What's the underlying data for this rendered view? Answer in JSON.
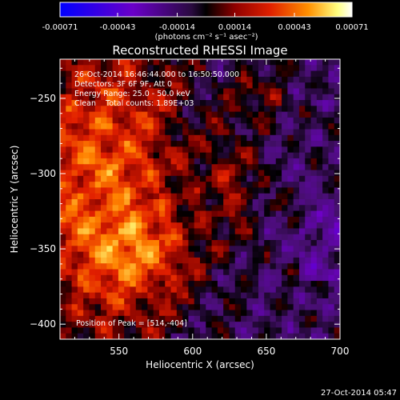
{
  "chart_data": {
    "type": "heatmap",
    "title": "Reconstructed RHESSI Image",
    "xlabel": "Heliocentric X (arcsec)",
    "ylabel": "Heliocentric Y (arcsec)",
    "xlim": [
      510,
      700
    ],
    "ylim": [
      -410,
      -224
    ],
    "x_ticks": [
      550,
      600,
      650,
      700
    ],
    "y_ticks": [
      -250,
      -300,
      -350,
      -400
    ],
    "x_tick_labels": [
      "550",
      "600",
      "650",
      "700"
    ],
    "y_tick_labels": [
      "−250",
      "−300",
      "−350",
      "−400"
    ],
    "colorbar": {
      "min": -0.00071,
      "max": 0.00071,
      "tick_values": [
        -0.00071,
        -0.00043,
        -0.00014,
        0.00014,
        0.00043,
        0.00071
      ],
      "tick_labels": [
        "-0.00071",
        "-0.00043",
        "-0.00014",
        "0.00014",
        "0.00043",
        "0.00071"
      ],
      "unit_label": "(photons cm⁻² s⁻¹ asec⁻²)",
      "colormap": [
        "#0000ff",
        "#6a00c8",
        "#3a0a50",
        "#000000",
        "#8a0000",
        "#e02000",
        "#ff8c00",
        "#ffff80",
        "#ffffff"
      ]
    },
    "annotations": {
      "time_range": "26-Oct-2014 16:46:44.000 to 16:50:50.000",
      "detectors": "Detectors: 3F 6F 9F, Att 0",
      "energy": "Energy Range: 25.0 - 50.0 keV",
      "clean_counts": "Clean    Total counts: 1.89E+03",
      "peak": "Position of Peak = [514,-404]"
    },
    "pixel_grid": {
      "nx": 48,
      "ny": 48
    },
    "grid": false
  },
  "footer": {
    "timestamp": "27-Oct-2014 05:47"
  }
}
